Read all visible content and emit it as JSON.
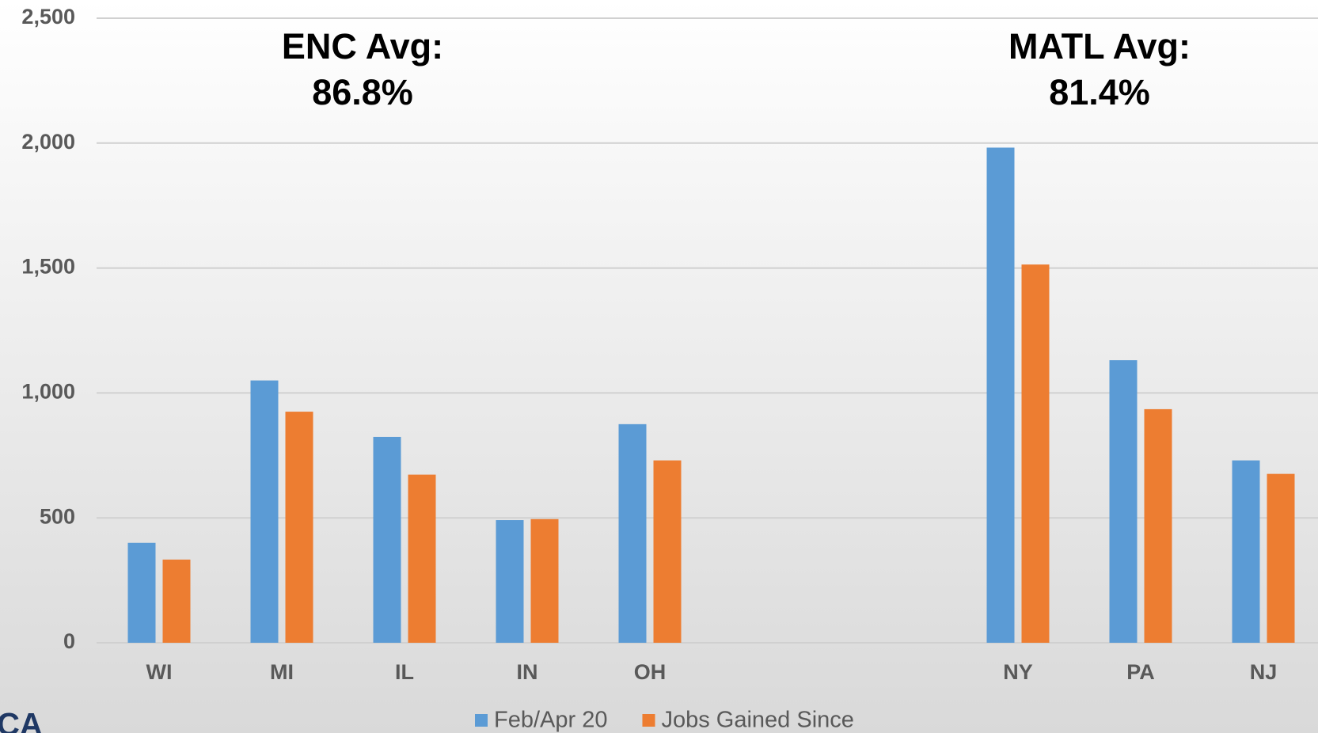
{
  "chart_data": {
    "type": "bar",
    "categories": [
      "WI",
      "MI",
      "IL",
      "IN",
      "OH",
      null,
      null,
      "NY",
      "PA",
      "NJ"
    ],
    "series": [
      {
        "name": "Feb/Apr 20",
        "color": "#5b9bd5",
        "values": [
          400,
          1050,
          824,
          491,
          875,
          null,
          null,
          1982,
          1131,
          730
        ]
      },
      {
        "name": "Jobs Gained Since",
        "color": "#ed7d31",
        "values": [
          333,
          925,
          673,
          495,
          730,
          null,
          null,
          1514,
          935,
          676
        ]
      }
    ],
    "ylim": [
      0,
      2500
    ],
    "yticks": [
      0,
      500,
      {
        "value": 1000,
        "label": "1,000"
      },
      {
        "value": 1500,
        "label": "1,500"
      },
      {
        "value": 2000,
        "label": "2,000"
      },
      {
        "value": 2500,
        "label": "2,500"
      }
    ],
    "grid": true,
    "annotations": [
      {
        "lines": [
          "ENC Avg:",
          "86.8%"
        ]
      },
      {
        "lines": [
          "MATL Avg:",
          "81.4%"
        ]
      }
    ],
    "logo_text": "CA"
  }
}
